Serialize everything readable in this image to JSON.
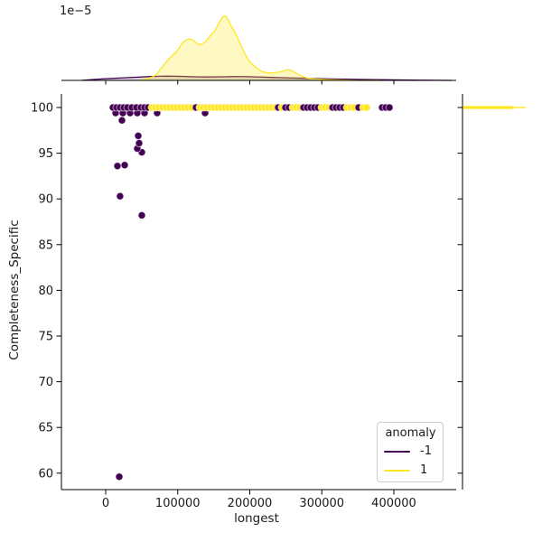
{
  "offset_label": "1e−5",
  "axes": {
    "xlabel": "longest",
    "ylabel": "Completeness_Specific",
    "x_tick_labels": [
      "0",
      "100000",
      "200000",
      "300000",
      "400000"
    ],
    "y_tick_labels": [
      "100",
      "95",
      "90",
      "85",
      "80",
      "75",
      "70",
      "65",
      "60"
    ]
  },
  "legend": {
    "title": "anomaly",
    "entries": [
      {
        "label": "-1",
        "color": "#440154"
      },
      {
        "label": "1",
        "color": "#FDE725"
      }
    ]
  },
  "colors": {
    "anomaly_neg": "#440154",
    "anomaly_pos": "#FDE725",
    "kde_purple_fill": "rgba(68,1,84,0.18)",
    "kde_yellow_fill": "rgba(253,231,37,0.28)",
    "marker_edge": "rgba(255,255,255,0.6)",
    "spine": "#000000",
    "text": "#1a1a1a"
  },
  "chart_data": {
    "type": "scatter",
    "title": "",
    "xlabel": "longest",
    "ylabel": "Completeness_Specific",
    "xlim": [
      -62700,
      486500
    ],
    "ylim": [
      58.2,
      101.5
    ],
    "x_ticks": [
      0,
      100000,
      200000,
      300000,
      400000
    ],
    "y_ticks": [
      100,
      95,
      90,
      85,
      80,
      75,
      70,
      65,
      60
    ],
    "grid": false,
    "legend_position": "lower right",
    "legend_title": "anomaly",
    "series": [
      {
        "name": "-1",
        "color": "#440154",
        "points": [
          [
            10000,
            100
          ],
          [
            15000,
            100
          ],
          [
            20100,
            100
          ],
          [
            25100,
            100
          ],
          [
            30100,
            100
          ],
          [
            36400,
            100
          ],
          [
            42600,
            100
          ],
          [
            48900,
            100
          ],
          [
            53900,
            100
          ],
          [
            58900,
            100
          ],
          [
            125400,
            100
          ],
          [
            239500,
            100
          ],
          [
            249500,
            100
          ],
          [
            254600,
            100
          ],
          [
            274600,
            100
          ],
          [
            279600,
            100
          ],
          [
            284700,
            100
          ],
          [
            289700,
            100
          ],
          [
            294700,
            100
          ],
          [
            314800,
            100
          ],
          [
            319800,
            100
          ],
          [
            324800,
            100
          ],
          [
            329800,
            100
          ],
          [
            351100,
            100
          ],
          [
            383700,
            100
          ],
          [
            388700,
            100
          ],
          [
            393800,
            100
          ],
          [
            13800,
            99.4
          ],
          [
            23800,
            99.4
          ],
          [
            33900,
            99.4
          ],
          [
            43900,
            99.4
          ],
          [
            53900,
            99.4
          ],
          [
            71500,
            99.4
          ],
          [
            137900,
            99.4
          ],
          [
            22600,
            98.6
          ],
          [
            45100,
            96.9
          ],
          [
            46400,
            96.1
          ],
          [
            43900,
            95.5
          ],
          [
            50200,
            95.1
          ],
          [
            26300,
            93.7
          ],
          [
            16300,
            93.6
          ],
          [
            20000,
            90.3
          ],
          [
            50200,
            88.2
          ],
          [
            18800,
            59.6
          ]
        ]
      },
      {
        "name": "1",
        "color": "#FDE725",
        "points": [
          [
            64000,
            100
          ],
          [
            69000,
            100
          ],
          [
            74000,
            100
          ],
          [
            79000,
            100
          ],
          [
            84000,
            100
          ],
          [
            89000,
            100
          ],
          [
            94100,
            100
          ],
          [
            99100,
            100
          ],
          [
            104100,
            100
          ],
          [
            109100,
            100
          ],
          [
            114100,
            100
          ],
          [
            119100,
            100
          ],
          [
            130400,
            100
          ],
          [
            135400,
            100
          ],
          [
            140400,
            100
          ],
          [
            145500,
            100
          ],
          [
            150500,
            100
          ],
          [
            155500,
            100
          ],
          [
            160500,
            100
          ],
          [
            165500,
            100
          ],
          [
            170500,
            100
          ],
          [
            175600,
            100
          ],
          [
            180600,
            100
          ],
          [
            185600,
            100
          ],
          [
            190600,
            100
          ],
          [
            195600,
            100
          ],
          [
            200600,
            100
          ],
          [
            205700,
            100
          ],
          [
            210700,
            100
          ],
          [
            215700,
            100
          ],
          [
            220700,
            100
          ],
          [
            225700,
            100
          ],
          [
            230700,
            100
          ],
          [
            235800,
            100
          ],
          [
            244500,
            100
          ],
          [
            259600,
            100
          ],
          [
            264600,
            100
          ],
          [
            269600,
            100
          ],
          [
            299700,
            100
          ],
          [
            304700,
            100
          ],
          [
            309700,
            100
          ],
          [
            334800,
            100
          ],
          [
            339800,
            100
          ],
          [
            344900,
            100
          ],
          [
            357400,
            100
          ],
          [
            362400,
            100
          ]
        ]
      }
    ],
    "top_marginal": {
      "type": "kde",
      "scale_label": "1e−5",
      "series": [
        {
          "name": "-1",
          "color": "#440154",
          "x": [
            -33900,
            -8800,
            16300,
            41400,
            66500,
            85300,
            104100,
            122900,
            141700,
            160500,
            181800,
            198100,
            216900,
            242000,
            267100,
            298500,
            329800,
            367400,
            405000,
            442700,
            480300
          ],
          "rel_density": [
            0,
            0.02,
            0.033,
            0.047,
            0.06,
            0.063,
            0.06,
            0.053,
            0.05,
            0.053,
            0.058,
            0.055,
            0.048,
            0.04,
            0.033,
            0.025,
            0.018,
            0.012,
            0.007,
            0.003,
            0
          ]
        },
        {
          "name": "1",
          "color": "#FDE725",
          "x": [
            47700,
            60200,
            69000,
            76500,
            85300,
            91500,
            99100,
            106600,
            114100,
            119100,
            124100,
            129200,
            136700,
            141700,
            146700,
            151700,
            156800,
            161800,
            165500,
            169300,
            174300,
            179300,
            184300,
            189400,
            194400,
            199400,
            204400,
            210700,
            216900,
            224500,
            232000,
            239500,
            247000,
            252100,
            257100,
            262100,
            268400,
            274600,
            282200,
            292200,
            304700,
            323500,
            348600,
            380000
          ],
          "rel_density": [
            0,
            0.03,
            0.07,
            0.17,
            0.29,
            0.36,
            0.43,
            0.56,
            0.61,
            0.61,
            0.57,
            0.52,
            0.55,
            0.61,
            0.68,
            0.73,
            0.84,
            0.93,
            0.96,
            0.92,
            0.8,
            0.72,
            0.6,
            0.48,
            0.37,
            0.28,
            0.23,
            0.17,
            0.13,
            0.11,
            0.11,
            0.12,
            0.14,
            0.16,
            0.15,
            0.12,
            0.08,
            0.05,
            0.03,
            0.02,
            0.013,
            0.007,
            0,
            0
          ]
        }
      ]
    },
    "right_marginal": {
      "type": "kde",
      "series": [
        {
          "name": "1",
          "color": "#FDE725",
          "spike_at_y": 100,
          "rel_density": 1.0
        }
      ]
    }
  }
}
